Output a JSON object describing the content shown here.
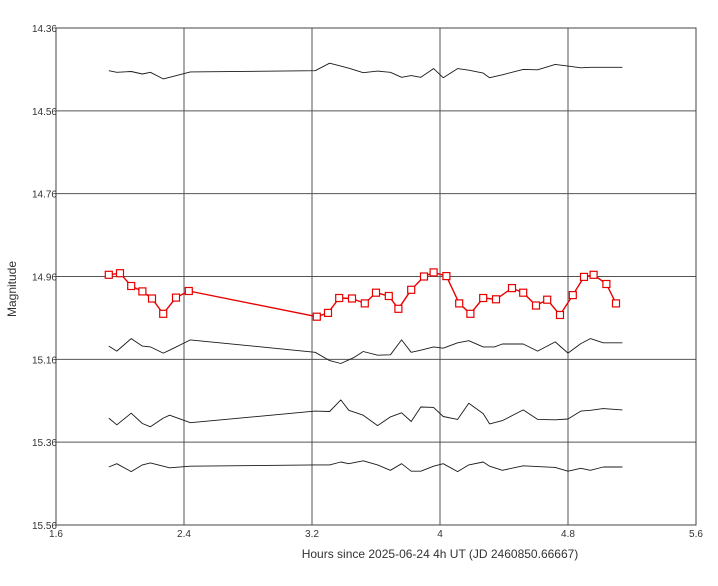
{
  "chart_data": {
    "type": "line",
    "title": "",
    "xlabel": "Hours since 2025-06-24 4h UT (JD 2460850.66667)",
    "ylabel": "Magnitude",
    "xlim": [
      1.6,
      5.6
    ],
    "ylim": [
      14.36,
      15.56
    ],
    "y_inverted": true,
    "grid": true,
    "x_ticks": [
      "1.6",
      "2.4",
      "3.2",
      "4",
      "4.8",
      "5.6"
    ],
    "y_ticks": [
      "14.36",
      "14.56",
      "14.76",
      "14.96",
      "15.16",
      "15.36",
      "15.56"
    ],
    "legend": "none",
    "series": [
      {
        "color": "#1a1a1a",
        "marker": "none",
        "x": [
          1.93,
          1.98,
          2.07,
          2.14,
          2.19,
          2.27,
          2.31,
          2.44,
          3.22,
          3.31,
          3.38,
          3.43,
          3.52,
          3.61,
          3.69,
          3.76,
          3.82,
          3.88,
          3.96,
          4.02,
          4.11,
          4.18,
          4.27,
          4.31,
          4.39,
          4.52,
          4.61,
          4.72,
          4.8,
          4.88,
          4.94,
          5.02,
          5.14
        ],
        "y": [
          14.463,
          14.467,
          14.465,
          14.471,
          14.467,
          14.483,
          14.479,
          14.466,
          14.463,
          14.445,
          14.452,
          14.457,
          14.468,
          14.464,
          14.467,
          14.479,
          14.475,
          14.479,
          14.458,
          14.48,
          14.458,
          14.462,
          14.469,
          14.48,
          14.473,
          14.46,
          14.461,
          14.448,
          14.452,
          14.456,
          14.455,
          14.455,
          14.455
        ]
      },
      {
        "color": "#e60000",
        "marker": "square",
        "x": [
          1.93,
          2.0,
          2.07,
          2.14,
          2.2,
          2.27,
          2.35,
          2.43,
          3.23,
          3.3,
          3.37,
          3.45,
          3.53,
          3.6,
          3.68,
          3.74,
          3.82,
          3.9,
          3.96,
          4.04,
          4.12,
          4.19,
          4.27,
          4.35,
          4.45,
          4.52,
          4.6,
          4.67,
          4.75,
          4.83,
          4.9,
          4.96,
          5.04,
          5.1
        ],
        "y": [
          14.956,
          14.952,
          14.983,
          14.996,
          15.013,
          15.05,
          15.011,
          14.995,
          15.057,
          15.048,
          15.012,
          15.013,
          15.025,
          14.999,
          15.007,
          15.038,
          14.992,
          14.96,
          14.95,
          14.959,
          15.025,
          15.05,
          15.012,
          15.015,
          14.988,
          14.999,
          15.03,
          15.016,
          15.053,
          15.005,
          14.961,
          14.956,
          14.978,
          15.025
        ]
      },
      {
        "color": "#1a1a1a",
        "marker": "none",
        "x": [
          1.93,
          1.98,
          2.07,
          2.14,
          2.19,
          2.27,
          2.31,
          2.44,
          3.22,
          3.31,
          3.38,
          3.46,
          3.52,
          3.61,
          3.69,
          3.76,
          3.82,
          3.88,
          3.96,
          4.02,
          4.11,
          4.18,
          4.27,
          4.34,
          4.39,
          4.52,
          4.61,
          4.72,
          4.8,
          4.88,
          4.94,
          5.02,
          5.14
        ],
        "y": [
          15.128,
          15.14,
          15.11,
          15.128,
          15.13,
          15.145,
          15.138,
          15.113,
          15.143,
          15.163,
          15.17,
          15.156,
          15.141,
          15.15,
          15.149,
          15.113,
          15.143,
          15.138,
          15.13,
          15.133,
          15.12,
          15.115,
          15.13,
          15.13,
          15.123,
          15.123,
          15.14,
          15.118,
          15.145,
          15.122,
          15.11,
          15.12,
          15.12
        ]
      },
      {
        "color": "#1a1a1a",
        "marker": "none",
        "x": [
          1.93,
          1.98,
          2.07,
          2.14,
          2.19,
          2.27,
          2.31,
          2.44,
          3.22,
          3.31,
          3.38,
          3.43,
          3.52,
          3.61,
          3.69,
          3.76,
          3.82,
          3.88,
          3.96,
          4.02,
          4.11,
          4.18,
          4.27,
          4.31,
          4.39,
          4.52,
          4.61,
          4.72,
          4.8,
          4.88,
          4.94,
          5.02,
          5.14
        ],
        "y": [
          15.302,
          15.318,
          15.29,
          15.315,
          15.323,
          15.302,
          15.295,
          15.313,
          15.285,
          15.286,
          15.258,
          15.283,
          15.295,
          15.32,
          15.299,
          15.289,
          15.31,
          15.275,
          15.276,
          15.298,
          15.305,
          15.266,
          15.291,
          15.316,
          15.308,
          15.282,
          15.305,
          15.306,
          15.304,
          15.285,
          15.283,
          15.279,
          15.282
        ]
      },
      {
        "color": "#1a1a1a",
        "marker": "none",
        "x": [
          1.93,
          1.98,
          2.07,
          2.14,
          2.19,
          2.27,
          2.31,
          2.44,
          3.22,
          3.31,
          3.38,
          3.43,
          3.52,
          3.61,
          3.69,
          3.76,
          3.82,
          3.88,
          3.96,
          4.02,
          4.11,
          4.18,
          4.27,
          4.31,
          4.39,
          4.52,
          4.61,
          4.72,
          4.8,
          4.88,
          4.94,
          5.02,
          5.14
        ],
        "y": [
          15.42,
          15.412,
          15.431,
          15.415,
          15.41,
          15.418,
          15.422,
          15.418,
          15.415,
          15.415,
          15.408,
          15.412,
          15.405,
          15.415,
          15.428,
          15.412,
          15.43,
          15.43,
          15.418,
          15.412,
          15.431,
          15.415,
          15.408,
          15.418,
          15.428,
          15.417,
          15.419,
          15.421,
          15.43,
          15.423,
          15.428,
          15.42,
          15.42
        ]
      }
    ]
  }
}
